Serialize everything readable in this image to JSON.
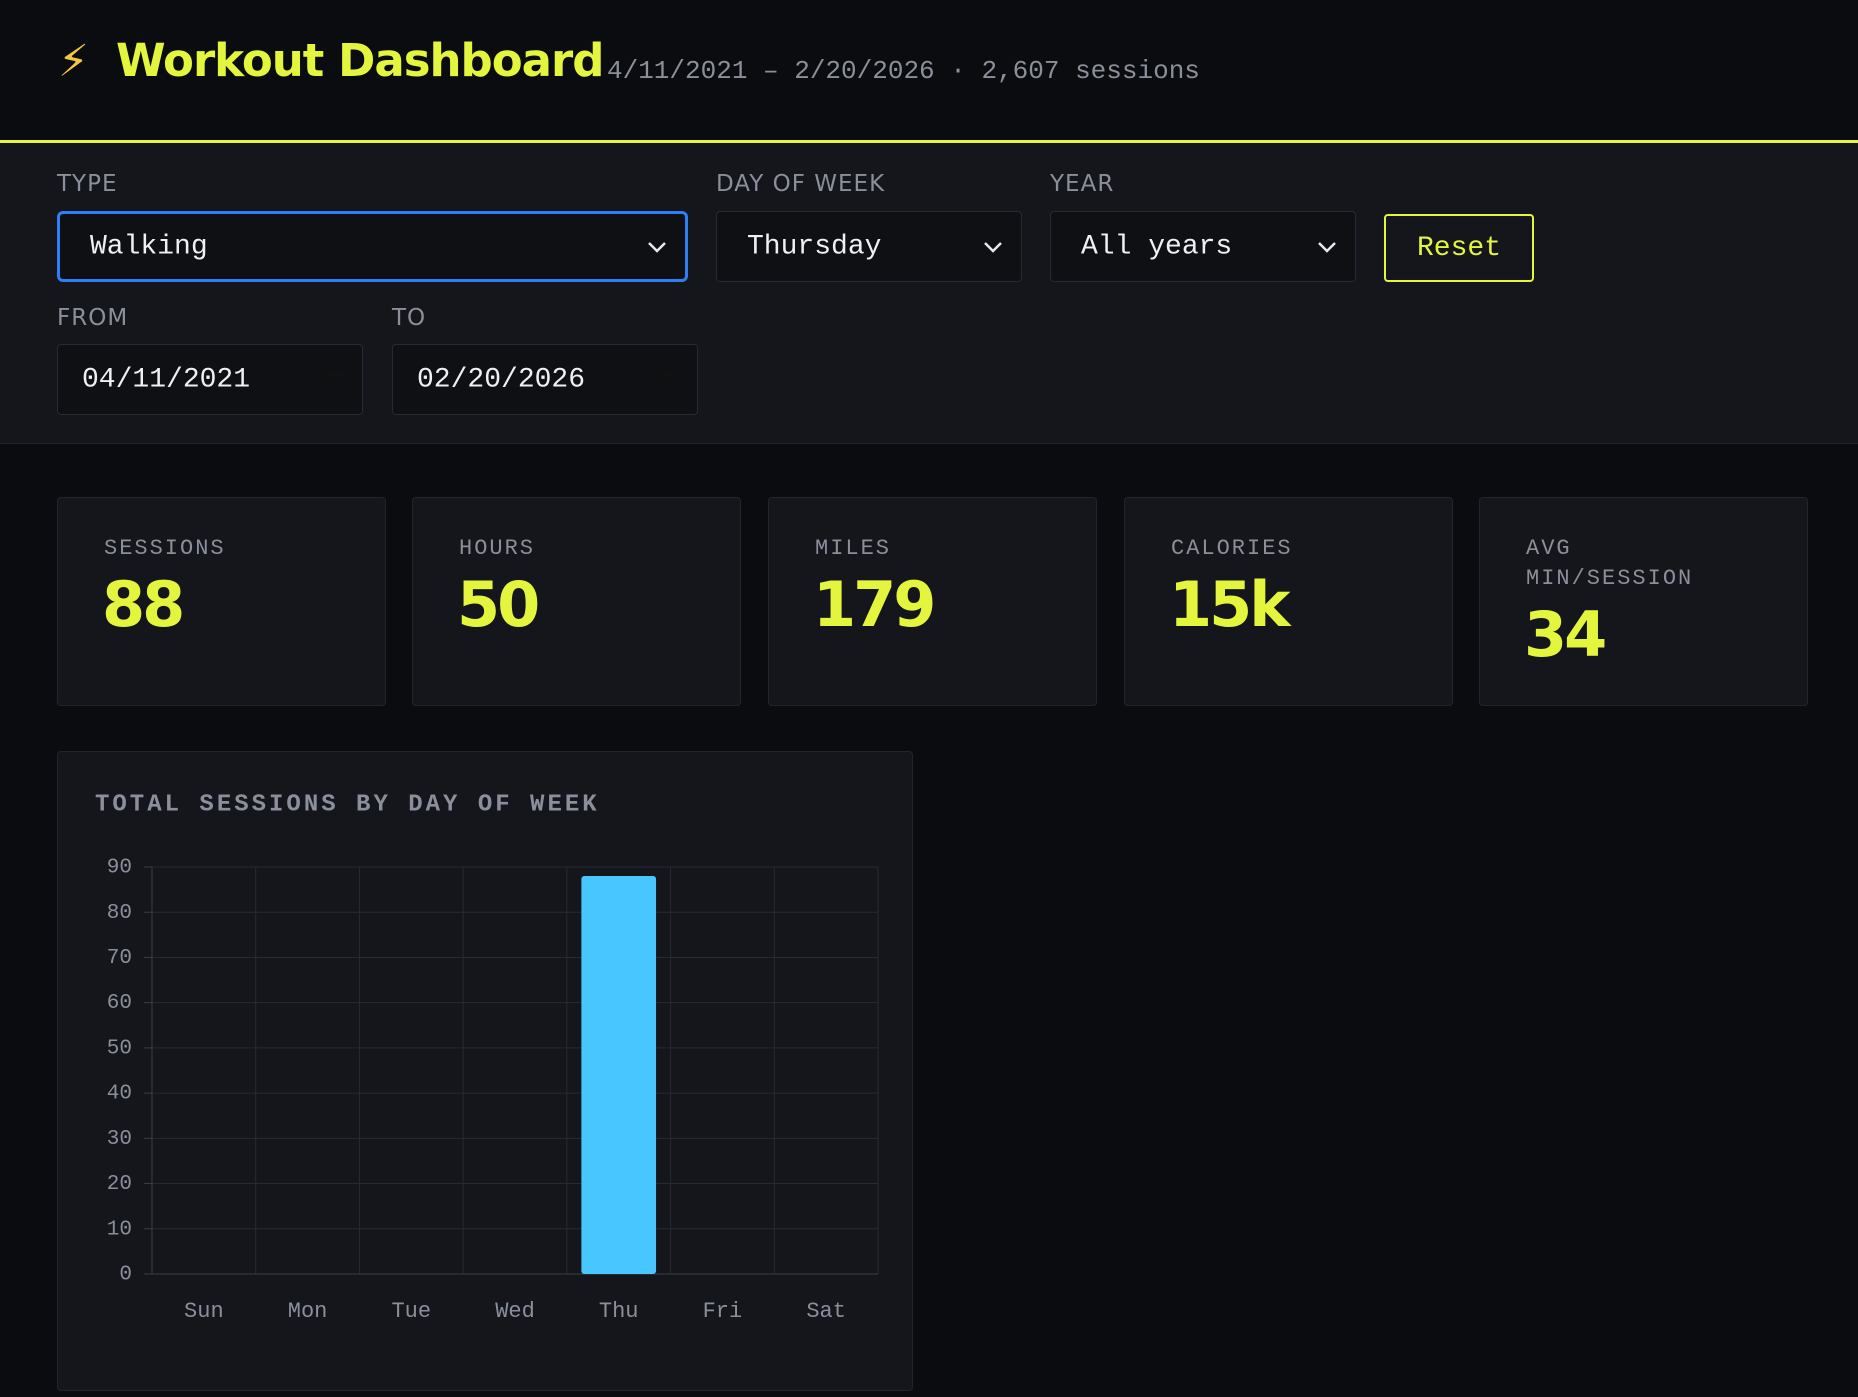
{
  "header": {
    "icon": "⚡",
    "title": "Workout Dashboard",
    "subtitle": "4/11/2021 – 2/20/2026 · 2,607 sessions"
  },
  "filters": {
    "type": {
      "label": "TYPE",
      "value": "Walking"
    },
    "day_of_week": {
      "label": "DAY OF WEEK",
      "value": "Thursday"
    },
    "year": {
      "label": "YEAR",
      "value": "All years"
    },
    "reset": "Reset",
    "from": {
      "label": "FROM",
      "value": "04/11/2021"
    },
    "to": {
      "label": "TO",
      "value": "02/20/2026"
    }
  },
  "stats": [
    {
      "label": "SESSIONS",
      "value": "88"
    },
    {
      "label": "HOURS",
      "value": "50"
    },
    {
      "label": "MILES",
      "value": "179"
    },
    {
      "label": "CALORIES",
      "value": "15k"
    },
    {
      "label": "AVG MIN/SESSION",
      "value": "34"
    }
  ],
  "chart_data": {
    "type": "bar",
    "title": "TOTAL SESSIONS BY DAY OF WEEK",
    "categories": [
      "Sun",
      "Mon",
      "Tue",
      "Wed",
      "Thu",
      "Fri",
      "Sat"
    ],
    "values": [
      0,
      0,
      0,
      0,
      88,
      0,
      0
    ],
    "color": "#48c6ff",
    "ylim": [
      0,
      90
    ],
    "yticks": [
      0,
      10,
      20,
      30,
      40,
      50,
      60,
      70,
      80,
      90
    ],
    "grid": true
  }
}
